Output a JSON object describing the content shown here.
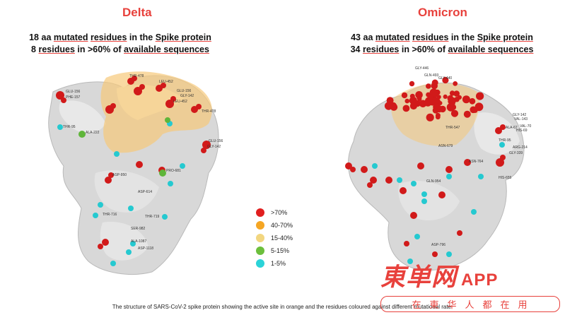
{
  "left_panel": {
    "title": "Delta",
    "subtitle_line1_pre": "18 aa ",
    "subtitle_line1_u1": "mutated",
    "subtitle_line1_u2": "residues",
    "subtitle_line1_mid": " in the ",
    "subtitle_line1_u3": "Spike protein",
    "subtitle_line2_pre": "8 ",
    "subtitle_line2_u1": "residues",
    "subtitle_line2_mid": " in >60% of ",
    "subtitle_line2_u2": "available sequences",
    "residue_labels": [
      "GLU-156",
      "PHE-157",
      "THR-478",
      "LEU-452",
      "GLU-156",
      "GLY-142",
      "LEU-452",
      "THR-478",
      "THR-95",
      "ALA-222",
      "GLU-156",
      "GLY-142",
      "ASP-950",
      "ASP-614",
      "PRO-681",
      "THR-716",
      "THR-719",
      "SER-982",
      "ASP-1118",
      "ALA-1087"
    ]
  },
  "right_panel": {
    "title": "Omicron",
    "subtitle_line1_pre": "43 aa ",
    "subtitle_line1_u1": "mutated",
    "subtitle_line1_u2": "residues",
    "subtitle_line1_mid": " in the ",
    "subtitle_line1_u3": "Spike protein",
    "subtitle_line2_pre": "34 ",
    "subtitle_line2_u1": "residues",
    "subtitle_line2_mid": " in >60% of ",
    "subtitle_line2_u2": "available sequences",
    "residue_labels": [
      "GLY-446",
      "GLN-493",
      "GLY-440",
      "GLY-142",
      "VAL-143",
      "VAL-70",
      "HIS-69",
      "ALA-67",
      "THR-95",
      "ARG-214",
      "GLY-339",
      "ASN-764",
      "ASN-679",
      "HIS-655",
      "GLN-954",
      "THR-547",
      "ASP-796"
    ]
  },
  "legend": [
    {
      "label": ">70%",
      "color": "#e11f1f"
    },
    {
      "label": "40-70%",
      "color": "#f5a623"
    },
    {
      "label": "15-40%",
      "color": "#f2d680"
    },
    {
      "label": "5-15%",
      "color": "#6cbf3c"
    },
    {
      "label": "1-5%",
      "color": "#2bd3d8"
    }
  ],
  "caption": "The structure of SARS-CoV-2 spike protein showing the active site in orange and the residues coloured against different mutational rate.",
  "watermark": {
    "name_cn": "東单网",
    "name_app": "APP",
    "tagline": "在東华人都在用"
  }
}
